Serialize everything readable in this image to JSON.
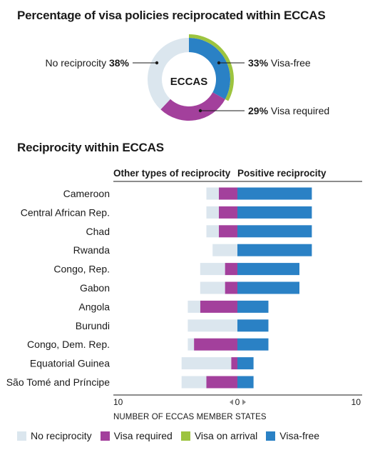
{
  "colors": {
    "no_reciprocity": "#dbe6ee",
    "visa_required": "#a3409c",
    "visa_on_arrival": "#9dc43f",
    "visa_free": "#2a81c5"
  },
  "donut": {
    "title": "Percentage of visa policies reciprocated within ECCAS",
    "center_label": "ECCAS",
    "slices": [
      {
        "name": "Visa-free",
        "pct_label": "33%",
        "value": 33,
        "color_key": "visa_free"
      },
      {
        "name": "Visa required",
        "pct_label": "29%",
        "value": 29,
        "color_key": "visa_required"
      },
      {
        "name": "No reciprocity",
        "pct_label": "38%",
        "value": 38,
        "color_key": "no_reciprocity"
      }
    ]
  },
  "chart_data": {
    "type": "bar",
    "orientation": "horizontal-diverging",
    "title": "Reciprocity within ECCAS",
    "left_header": "Other types of reciprocity",
    "right_header": "Positive reciprocity",
    "xlabel": "NUMBER OF ECCAS MEMBER STATES",
    "x_ticks": {
      "left": "10",
      "center": "0",
      "right": "10"
    },
    "xlim": [
      -10,
      10
    ],
    "categories": [
      "Cameroon",
      "Central African Rep.",
      "Chad",
      "Rwanda",
      "Congo, Rep.",
      "Gabon",
      "Angola",
      "Burundi",
      "Congo, Dem. Rep.",
      "Equatorial Guinea",
      "São Tomé and Príncipe"
    ],
    "series": [
      {
        "name": "No reciprocity",
        "side": "left",
        "color_key": "no_reciprocity",
        "values": [
          1,
          1,
          1,
          2,
          2,
          2,
          1,
          4,
          0.5,
          4,
          2
        ]
      },
      {
        "name": "Visa required",
        "side": "left",
        "color_key": "visa_required",
        "values": [
          1.5,
          1.5,
          1.5,
          0,
          1,
          1,
          3,
          0,
          3.5,
          0.5,
          2.5
        ]
      },
      {
        "name": "Visa on arrival",
        "side": "right",
        "color_key": "visa_on_arrival",
        "values": [
          0,
          0,
          0,
          0,
          0,
          0,
          0,
          0,
          0,
          0,
          0
        ]
      },
      {
        "name": "Visa-free",
        "side": "right",
        "color_key": "visa_free",
        "values": [
          6,
          6,
          6,
          6,
          5,
          5,
          2.5,
          2.5,
          2.5,
          1.3,
          1.3
        ]
      }
    ]
  },
  "legend": [
    {
      "label": "No reciprocity",
      "color_key": "no_reciprocity"
    },
    {
      "label": "Visa required",
      "color_key": "visa_required"
    },
    {
      "label": "Visa on arrival",
      "color_key": "visa_on_arrival"
    },
    {
      "label": "Visa-free",
      "color_key": "visa_free"
    }
  ]
}
